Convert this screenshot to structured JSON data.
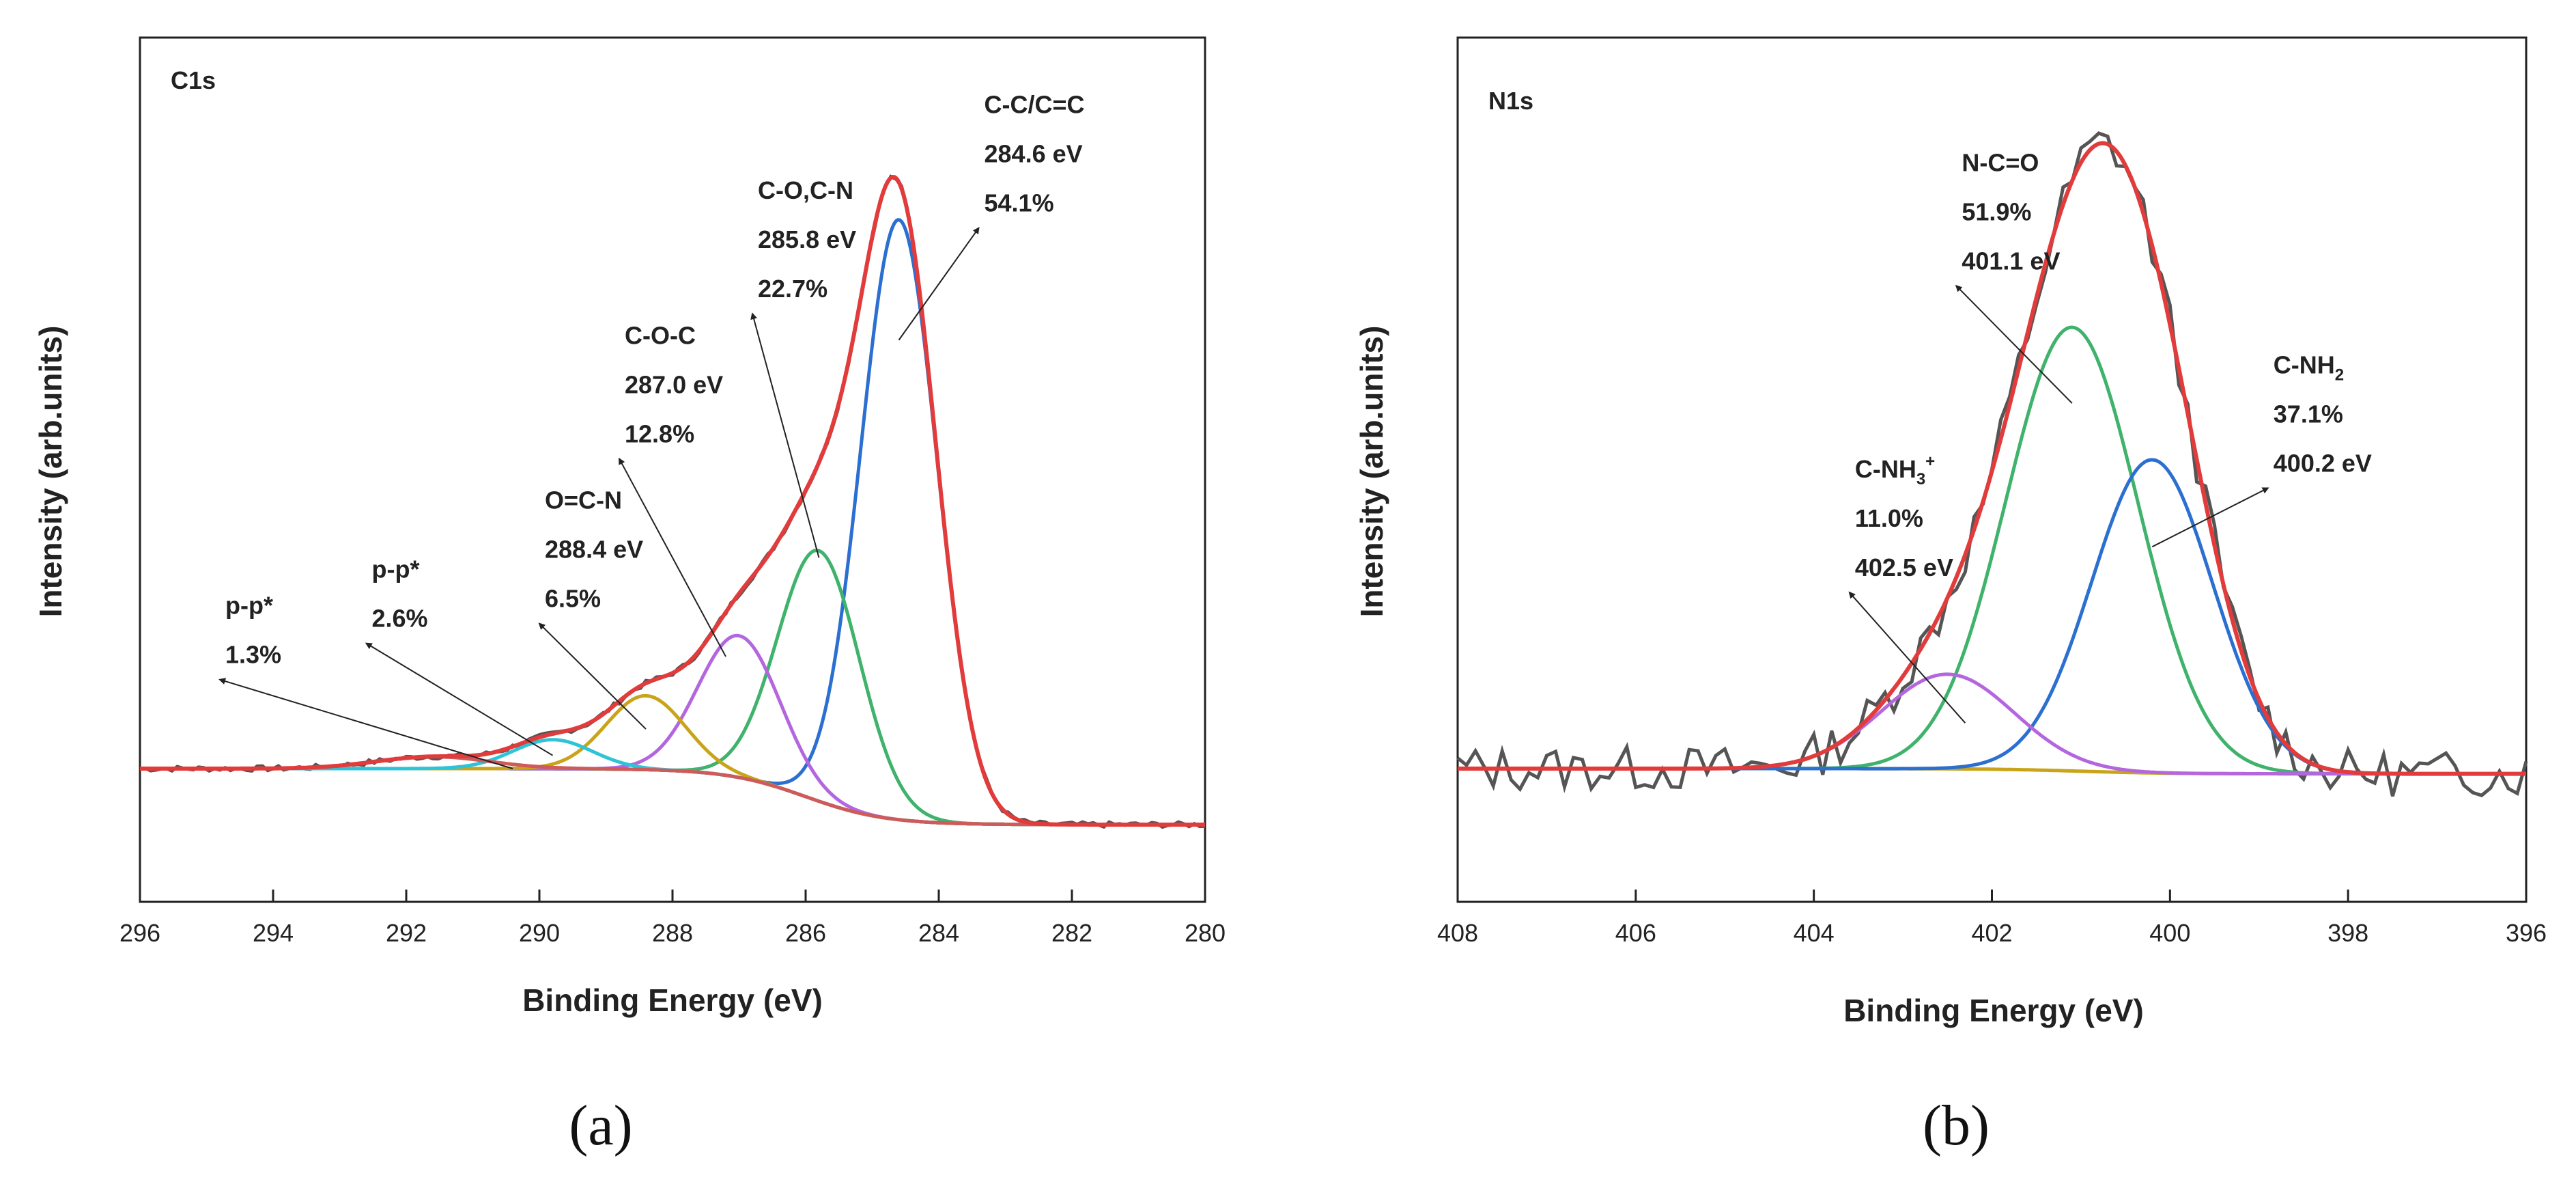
{
  "chart_data": [
    {
      "type": "line",
      "panel_label": "(a)",
      "title": "C1s",
      "xlabel": "Binding Energy (eV)",
      "ylabel": "Intensity (arb.units)",
      "xlim": [
        296,
        280
      ],
      "x_ticks": [
        296,
        294,
        292,
        290,
        288,
        286,
        284,
        282,
        280
      ],
      "ylim": [
        0,
        1
      ],
      "baseline": {
        "left_x": 296,
        "left_y": 0.0,
        "step_center": 286.0,
        "step_width": 1.2,
        "step_drop": 0.085
      },
      "series": [
        {
          "name": "C-C/C=C",
          "color": "#2b6fd1",
          "center": 284.6,
          "fwhm": 1.35,
          "height": 0.91
        },
        {
          "name": "C-O,C-N",
          "color": "#3fb26b",
          "center": 285.8,
          "fwhm": 1.45,
          "height": 0.38
        },
        {
          "name": "C-O-C",
          "color": "#b466df",
          "center": 287.0,
          "fwhm": 1.45,
          "height": 0.215
        },
        {
          "name": "O=C-N",
          "color": "#c9a418",
          "center": 288.4,
          "fwhm": 1.4,
          "height": 0.112
        },
        {
          "name": "p-p* (2.6%)",
          "color": "#2ec4d8",
          "center": 289.8,
          "fwhm": 1.4,
          "height": 0.044
        },
        {
          "name": "p-p* (1.3%)",
          "color": "#d05a5a",
          "center": 291.6,
          "fwhm": 2.0,
          "height": 0.018
        }
      ],
      "envelope_color": "#e23b3b",
      "raw_color": "#555555",
      "baseline_color": "#a89a2a",
      "annotations": [
        {
          "lines": [
            "C-C/C=C",
            "284.6 eV",
            "54.1%"
          ],
          "arrow_from": [
            284.6,
            0.65
          ],
          "arrow_to": [
            283.4,
            0.82
          ]
        },
        {
          "lines": [
            "C-O,C-N",
            "285.8 eV",
            "22.7%"
          ],
          "arrow_from": [
            285.8,
            0.32
          ],
          "arrow_to": [
            286.8,
            0.69
          ]
        },
        {
          "lines": [
            "C-O-C",
            "287.0 eV",
            "12.8%"
          ],
          "arrow_from": [
            287.2,
            0.17
          ],
          "arrow_to": [
            288.8,
            0.47
          ]
        },
        {
          "lines": [
            "O=C-N",
            "288.4 eV",
            "6.5%"
          ],
          "arrow_from": [
            288.4,
            0.06
          ],
          "arrow_to": [
            290.0,
            0.22
          ]
        },
        {
          "lines": [
            "p-p*",
            "2.6%"
          ],
          "arrow_from": [
            289.8,
            0.02
          ],
          "arrow_to": [
            292.6,
            0.19
          ]
        },
        {
          "lines": [
            "p-p*",
            "1.3%"
          ],
          "arrow_from": [
            290.4,
            0.0
          ],
          "arrow_to": [
            294.8,
            0.135
          ]
        }
      ]
    },
    {
      "type": "line",
      "panel_label": "(b)",
      "title": "N1s",
      "xlabel": "Binding Energy (eV)",
      "ylabel": "Intensity (arb.units)",
      "xlim": [
        408,
        396
      ],
      "x_ticks": [
        408,
        406,
        404,
        402,
        400,
        398,
        396
      ],
      "ylim": [
        0,
        1
      ],
      "baseline": {
        "left_x": 408,
        "left_y": 0.0,
        "step_center": 401.0,
        "step_width": 1.0,
        "step_drop": 0.008
      },
      "series": [
        {
          "name": "N-C=O",
          "color": "#3fb26b",
          "center": 401.1,
          "fwhm": 1.75,
          "height": 0.68
        },
        {
          "name": "C-NH2",
          "color": "#2b6fd1",
          "center": 400.2,
          "fwhm": 1.6,
          "height": 0.48
        },
        {
          "name": "C-NH3+",
          "color": "#b466df",
          "center": 402.5,
          "fwhm": 1.75,
          "height": 0.145
        }
      ],
      "envelope_color": "#e23b3b",
      "raw_color": "#555555",
      "baseline_color": "#c9a418",
      "annotations": [
        {
          "lines": [
            "N-C=O",
            "51.9%",
            "401.1 eV"
          ],
          "arrow_from": [
            401.1,
            0.56
          ],
          "arrow_to": [
            402.4,
            0.74
          ]
        },
        {
          "lines": [
            "C-NH2",
            "37.1%",
            "400.2 eV"
          ],
          "arrow_from": [
            400.2,
            0.34
          ],
          "arrow_to": [
            398.9,
            0.43
          ]
        },
        {
          "lines": [
            "C-NH3+",
            "11.0%",
            "402.5 eV"
          ],
          "arrow_from": [
            402.3,
            0.07
          ],
          "arrow_to": [
            403.6,
            0.27
          ]
        }
      ]
    }
  ]
}
